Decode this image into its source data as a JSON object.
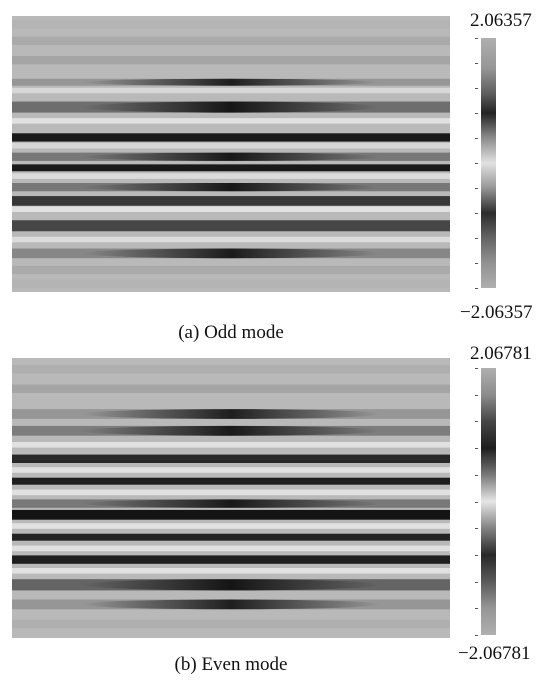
{
  "panels": [
    {
      "caption": "(a) Odd mode",
      "colorbar": {
        "max_label": "2.06357",
        "min_label": "−2.06357"
      }
    },
    {
      "caption": "(b) Even mode",
      "colorbar": {
        "max_label": "2.06781",
        "min_label": "−2.06781"
      }
    }
  ]
}
